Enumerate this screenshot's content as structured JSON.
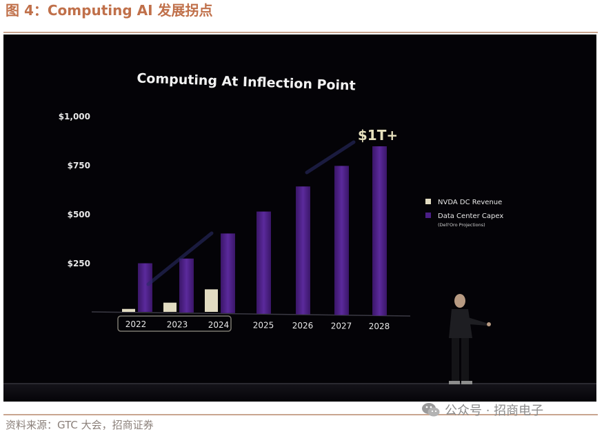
{
  "figure": {
    "caption": "图 4：Computing AI 发展拐点",
    "source": "资料来源：GTC 大会，招商证券",
    "watermark": "公众号 · 招商电子"
  },
  "colors": {
    "background": "#040307",
    "revenue": "#e2dcc2",
    "capex": "#4b1f86",
    "caption": "#c0704a"
  },
  "chart_data": {
    "type": "bar",
    "title": "Computing At Inflection Point",
    "categories": [
      "2022",
      "2023",
      "2024",
      "2025",
      "2026",
      "2027",
      "2028"
    ],
    "series": [
      {
        "name": "NVDA DC Revenue",
        "values": [
          15,
          47,
          115,
          null,
          null,
          null,
          null
        ]
      },
      {
        "name": "Data Center Capex",
        "values": [
          248,
          272,
          400,
          512,
          640,
          745,
          845
        ]
      }
    ],
    "legend_note": "(Dell'Oro Projections)",
    "yticks": [
      "$1,000",
      "$750",
      "$500",
      "$250"
    ],
    "ylim": [
      0,
      1000
    ],
    "annotation": "$1T+",
    "legend_position": "right"
  }
}
